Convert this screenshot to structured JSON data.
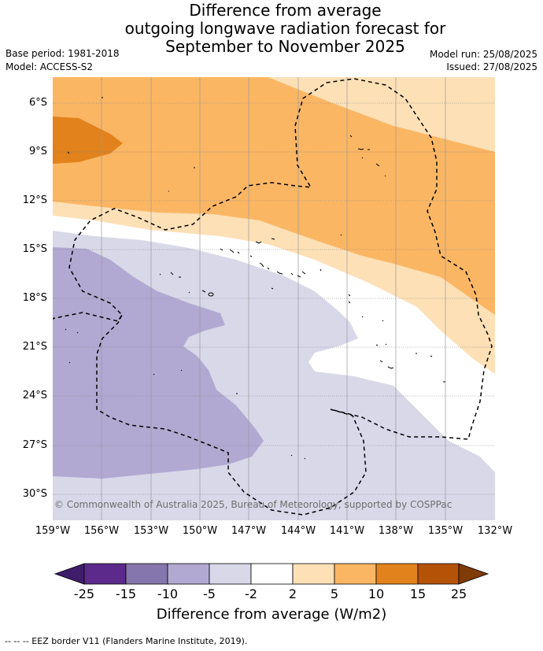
{
  "title": {
    "line1": "Difference from average",
    "line2": "outgoing longwave radiation forecast for",
    "line3": "September to November 2025"
  },
  "meta": {
    "base_period": "Base period: 1981-2018",
    "model": "Model: ACCESS-S2",
    "model_run": "Model run: 25/08/2025",
    "issued": "Issued: 27/08/2025"
  },
  "map": {
    "lat_labels": [
      "6°S",
      "9°S",
      "12°S",
      "15°S",
      "18°S",
      "21°S",
      "24°S",
      "27°S",
      "30°S"
    ],
    "lon_labels": [
      "159°W",
      "156°W",
      "153°W",
      "150°W",
      "147°W",
      "144°W",
      "141°W",
      "138°W",
      "135°W",
      "132°W"
    ],
    "copyright": "© Commonwealth of Australia 2025, Bureau of Meteorology, supported by COSPPac"
  },
  "colorbar": {
    "ticks": [
      "-25",
      "-15",
      "-10",
      "-5",
      "-2",
      "2",
      "5",
      "10",
      "15",
      "25"
    ],
    "colors": [
      "#3f1d6b",
      "#5b2a8a",
      "#8577ad",
      "#b1a9d2",
      "#d8d8e9",
      "#ffffff",
      "#fde0b6",
      "#fbb664",
      "#e2821c",
      "#b45307",
      "#7f3b08"
    ],
    "title": "Difference from average (W/m2)"
  },
  "footer": "--  --  -- EEZ border V11 (Flanders Marine Institute, 2019)."
}
